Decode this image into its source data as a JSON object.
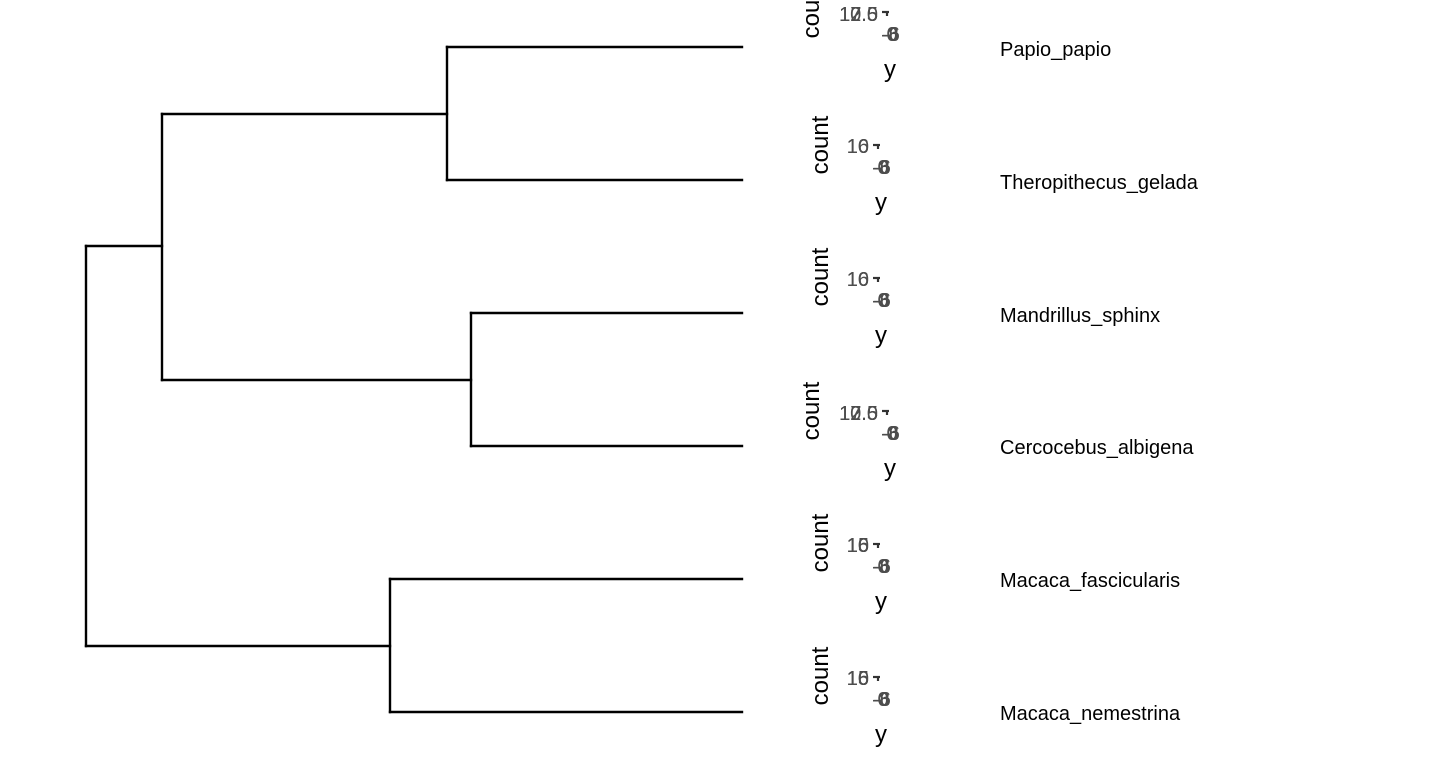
{
  "tree": {
    "tips": [
      {
        "id": "papio",
        "label": "Papio_papio"
      },
      {
        "id": "theropithecus",
        "label": "Theropithecus_gelada"
      },
      {
        "id": "mandrillus",
        "label": "Mandrillus_sphinx"
      },
      {
        "id": "cercocebus",
        "label": "Cercocebus_albigena"
      },
      {
        "id": "fascicularis",
        "label": "Macaca_fascicularis"
      },
      {
        "id": "nemestrina",
        "label": "Macaca_nemestrina"
      }
    ],
    "topology": "((((Papio_papio,Theropithecus_gelada),(Mandrillus_sphinx,Cercocebus_albigena)),(Macaca_fascicularis,Macaca_nemestrina)))",
    "colors": {
      "branch": "#000000",
      "tick_text": "#4d4d4d"
    }
  },
  "insets": [
    {
      "tip": "papio",
      "x_title": "y",
      "y_title": "count",
      "y_ticks": [
        "12.5",
        "10.0",
        "7.5"
      ],
      "x_ticks": [
        "-8",
        "-6",
        "0"
      ]
    },
    {
      "tip": "theropithecus",
      "x_title": "y",
      "y_title": "count",
      "y_ticks": [
        "16",
        "10"
      ],
      "x_ticks": [
        "-8",
        "-6",
        "0"
      ]
    },
    {
      "tip": "mandrillus",
      "x_title": "y",
      "y_title": "count",
      "y_ticks": [
        "16",
        "10"
      ],
      "x_ticks": [
        "-8",
        "-6",
        "0"
      ]
    },
    {
      "tip": "cercocebus",
      "x_title": "y",
      "y_title": "count",
      "y_ticks": [
        "12.5",
        "10.0",
        "7.5"
      ],
      "x_ticks": [
        "-8",
        "-6",
        "0"
      ]
    },
    {
      "tip": "fascicularis",
      "x_title": "y",
      "y_title": "count",
      "y_ticks": [
        "16",
        "15",
        "10"
      ],
      "x_ticks": [
        "-8",
        "-6",
        "0"
      ]
    },
    {
      "tip": "nemestrina",
      "x_title": "y",
      "y_title": "count",
      "y_ticks": [
        "16",
        "15",
        "10"
      ],
      "x_ticks": [
        "-8",
        "-6",
        "0"
      ]
    }
  ]
}
